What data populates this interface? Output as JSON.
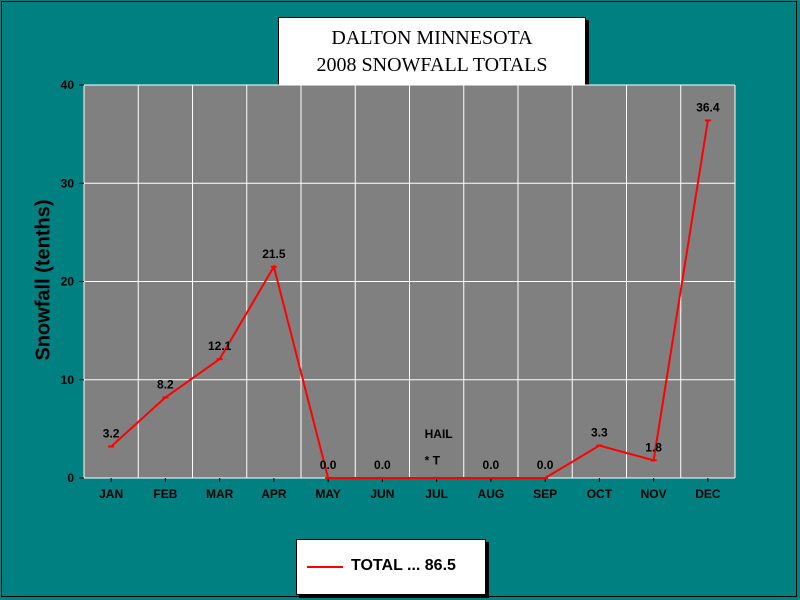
{
  "chart_data": {
    "type": "line",
    "title": [
      "DALTON MINNESOTA",
      "2008 SNOWFALL TOTALS"
    ],
    "xlabel": "",
    "ylabel": "Snowfall (tenths)",
    "categories": [
      "JAN",
      "FEB",
      "MAR",
      "APR",
      "MAY",
      "JUN",
      "JUL",
      "AUG",
      "SEP",
      "OCT",
      "NOV",
      "DEC"
    ],
    "series": [
      {
        "name": "TOTAL ... 86.5",
        "values": [
          3.2,
          8.2,
          12.1,
          21.5,
          0.0,
          0.0,
          null,
          0.0,
          0.0,
          3.3,
          1.8,
          36.4
        ],
        "data_labels": [
          "3.2",
          "8.2",
          "12.1",
          "21.5",
          "0.0",
          "0.0",
          "",
          "0.0",
          "0.0",
          "3.3",
          "1.8",
          "36.4"
        ],
        "color": "#ff0000"
      }
    ],
    "annotations": [
      {
        "text": "HAIL",
        "category": "JUL",
        "y": 4.5
      },
      {
        "text": "* T",
        "category": "JUL",
        "y": 1.8
      }
    ],
    "ylim": [
      0,
      40
    ],
    "yticks": [
      0,
      10,
      20,
      30,
      40
    ],
    "grid": true,
    "legend_position": "bottom",
    "colors": {
      "background": "#008080",
      "plot_area": "#808080",
      "grid": "#ffffff",
      "line": "#ff0000"
    }
  }
}
